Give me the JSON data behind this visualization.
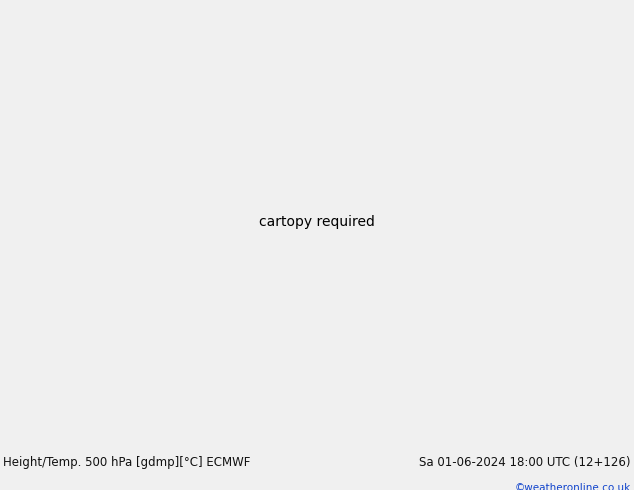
{
  "title_left": "Height/Temp. 500 hPa [gdmp][°C] ECMWF",
  "title_right": "Sa 01-06-2024 18:00 UTC (12+126)",
  "watermark": "©weatheronline.co.uk",
  "ocean_color": "#d0d0d0",
  "land_color": "#c8e8a0",
  "border_color": "#aaaaaa",
  "bar_bg": "#f0f0f0",
  "c_black": "#000000",
  "c_orange": "#ff9900",
  "c_red": "#ee2200",
  "c_cyan": "#00bbbb",
  "c_yellow_green": "#aacc00",
  "c_magenta": "#cc00cc",
  "text_dark": "#111111",
  "text_blue": "#1144cc",
  "fs_title": 8.5,
  "fs_wm": 7.5,
  "lon_min": -30,
  "lon_max": 90,
  "lat_min": -40,
  "lat_max": 45
}
